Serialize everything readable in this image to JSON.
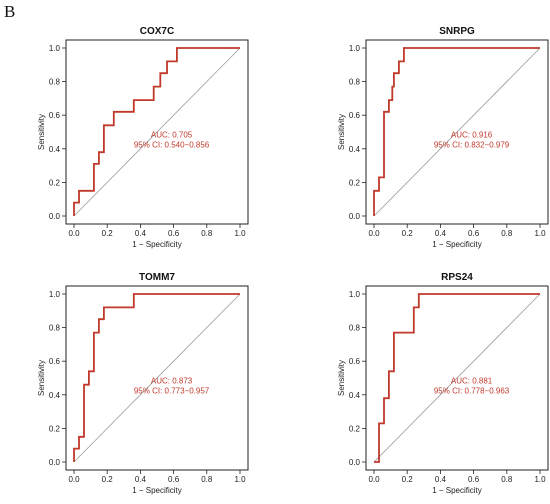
{
  "panel_label": "B",
  "colors": {
    "curve": "#c0392b",
    "diagonal": "#9a9a9a",
    "frame": "#222222"
  },
  "chart_data": [
    {
      "type": "line",
      "title": "COX7C",
      "xlabel": "1 − Specificity",
      "ylabel": "Sensitivity",
      "xlim": [
        0,
        1
      ],
      "ylim": [
        0,
        1
      ],
      "xticks": [
        "0.0",
        "0.2",
        "0.4",
        "0.6",
        "0.8",
        "1.0"
      ],
      "yticks": [
        "0.0",
        "0.2",
        "0.4",
        "0.6",
        "0.8",
        "1.0"
      ],
      "auc_text": "AUC: 0.705",
      "ci_text": "95% CI: 0.540−0.856",
      "grid": false,
      "series": [
        {
          "x": [
            0,
            0,
            0.03,
            0.03,
            0.12,
            0.12,
            0.15,
            0.15,
            0.18,
            0.18,
            0.24,
            0.24,
            0.36,
            0.36,
            0.48,
            0.48,
            0.52,
            0.52,
            0.56,
            0.56,
            0.62,
            0.62,
            0.78,
            0.78,
            1.0
          ],
          "y": [
            0,
            0.08,
            0.08,
            0.15,
            0.15,
            0.31,
            0.31,
            0.38,
            0.38,
            0.54,
            0.54,
            0.62,
            0.62,
            0.69,
            0.69,
            0.77,
            0.77,
            0.85,
            0.85,
            0.92,
            0.92,
            1.0,
            1.0,
            1.0,
            1.0
          ]
        }
      ]
    },
    {
      "type": "line",
      "title": "SNRPG",
      "xlabel": "1 − Specificity",
      "ylabel": "Sensitivity",
      "xlim": [
        0,
        1
      ],
      "ylim": [
        0,
        1
      ],
      "xticks": [
        "0.0",
        "0.2",
        "0.4",
        "0.6",
        "0.8",
        "1.0"
      ],
      "yticks": [
        "0.0",
        "0.2",
        "0.4",
        "0.6",
        "0.8",
        "1.0"
      ],
      "auc_text": "AUC: 0.916",
      "ci_text": "95% CI: 0.832−0.979",
      "grid": false,
      "series": [
        {
          "x": [
            0,
            0,
            0.03,
            0.03,
            0.06,
            0.06,
            0.09,
            0.09,
            0.11,
            0.11,
            0.12,
            0.12,
            0.15,
            0.15,
            0.18,
            0.18,
            1.0
          ],
          "y": [
            0,
            0.15,
            0.15,
            0.23,
            0.23,
            0.62,
            0.62,
            0.69,
            0.69,
            0.77,
            0.77,
            0.85,
            0.85,
            0.92,
            0.92,
            1.0,
            1.0
          ]
        }
      ]
    },
    {
      "type": "line",
      "title": "TOMM7",
      "xlabel": "1 − Specificity",
      "ylabel": "Sensitivity",
      "xlim": [
        0,
        1
      ],
      "ylim": [
        0,
        1
      ],
      "xticks": [
        "0.0",
        "0.2",
        "0.4",
        "0.6",
        "0.8",
        "1.0"
      ],
      "yticks": [
        "0.0",
        "0.2",
        "0.4",
        "0.6",
        "0.8",
        "1.0"
      ],
      "auc_text": "AUC: 0.873",
      "ci_text": "95% CI: 0.773−0.957",
      "grid": false,
      "series": [
        {
          "x": [
            0,
            0,
            0.03,
            0.03,
            0.06,
            0.06,
            0.09,
            0.09,
            0.12,
            0.12,
            0.15,
            0.15,
            0.18,
            0.18,
            0.21,
            0.21,
            0.36,
            0.36,
            1.0
          ],
          "y": [
            0,
            0.08,
            0.08,
            0.15,
            0.15,
            0.46,
            0.46,
            0.54,
            0.54,
            0.77,
            0.77,
            0.85,
            0.85,
            0.92,
            0.92,
            0.92,
            0.92,
            1.0,
            1.0
          ]
        }
      ]
    },
    {
      "type": "line",
      "title": "RPS24",
      "xlabel": "1 − Specificity",
      "ylabel": "Sensitivity",
      "xlim": [
        0,
        1
      ],
      "ylim": [
        0,
        1
      ],
      "xticks": [
        "0.0",
        "0.2",
        "0.4",
        "0.6",
        "0.8",
        "1.0"
      ],
      "yticks": [
        "0.0",
        "0.2",
        "0.4",
        "0.6",
        "0.8",
        "1.0"
      ],
      "auc_text": "AUC: 0.881",
      "ci_text": "95% CI: 0.778−0.963",
      "grid": false,
      "series": [
        {
          "x": [
            0,
            0.03,
            0.03,
            0.06,
            0.06,
            0.09,
            0.09,
            0.12,
            0.12,
            0.24,
            0.24,
            0.27,
            0.27,
            1.0
          ],
          "y": [
            0,
            0,
            0.23,
            0.23,
            0.38,
            0.38,
            0.54,
            0.54,
            0.77,
            0.77,
            0.92,
            0.92,
            1.0,
            1.0
          ]
        }
      ]
    }
  ]
}
